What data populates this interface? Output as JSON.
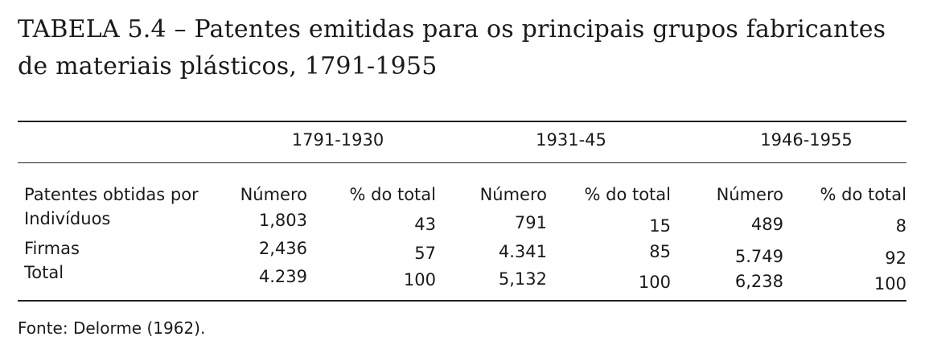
{
  "title": "TABELA 5.4 – Patentes emitidas para os principais grupos fabricantes de materiais plásticos, 1791-1955",
  "periods": [
    "1791-1930",
    "1931-45",
    "1946-1955"
  ],
  "row_header": "Patentes obtidas por",
  "sub_headers": [
    "Número",
    "% do total",
    "Número",
    "% do total",
    "Número",
    "% do total"
  ],
  "rows": [
    {
      "label": "Indivíduos",
      "values": [
        "1,803",
        "43",
        "791",
        "15",
        "489",
        "8"
      ]
    },
    {
      "label": "Firmas",
      "values": [
        "2,436",
        "57",
        "4.341",
        "85",
        "5.749",
        "92"
      ]
    },
    {
      "label": "Total",
      "values": [
        "4.239",
        "100",
        "5,132",
        "100",
        "6,238",
        "100"
      ]
    }
  ],
  "source": "Fonte: Delorme (1962)."
}
